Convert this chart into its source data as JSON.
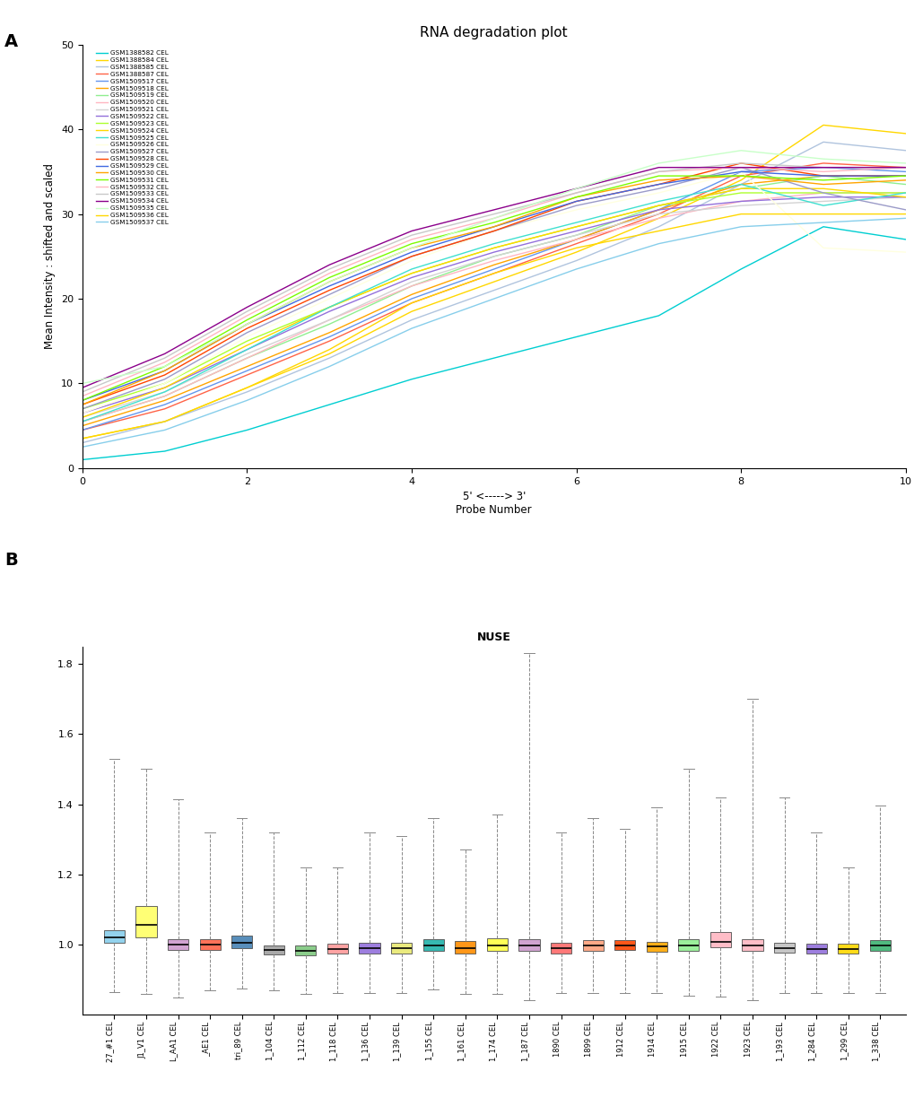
{
  "panel_a": {
    "title": "RNA degradation plot",
    "xlabel": "Probe Number",
    "xlabel2": "5' <-----> 3'",
    "ylabel": "Mean Intensity : shifted and scaled",
    "xlim": [
      0,
      10
    ],
    "ylim": [
      0,
      50
    ],
    "xticks": [
      0,
      2,
      4,
      6,
      8,
      10
    ],
    "yticks": [
      0,
      10,
      20,
      30,
      40,
      50
    ],
    "legend_labels": [
      "GSM1388582 CEL",
      "GSM1388584 CEL",
      "GSM1388585 CEL",
      "GSM1388587 CEL",
      "GSM1509517 CEL",
      "GSM1509518 CEL",
      "GSM1509519 CEL",
      "GSM1509520 CEL",
      "GSM1509521 CEL",
      "GSM1509522 CEL",
      "GSM1509523 CEL",
      "GSM1509524 CEL",
      "GSM1509525 CEL",
      "GSM1509526 CEL",
      "GSM1509527 CEL",
      "GSM1509528 CEL",
      "GSM1509529 CEL",
      "GSM1509530 CEL",
      "GSM1509531 CEL",
      "GSM1509532 CEL",
      "GSM1509533 CEL",
      "GSM1509534 CEL",
      "GSM1509535 CEL",
      "GSM1509536 CEL",
      "GSM1509537 CEL"
    ],
    "line_colors": [
      "#00CED1",
      "#FFD700",
      "#B0C4DE",
      "#FF6347",
      "#6495ED",
      "#FFA500",
      "#90EE90",
      "#FFB6C1",
      "#D3D3D3",
      "#9370DB",
      "#ADFF2F",
      "#FFD700",
      "#40E0D0",
      "#FFFFE0",
      "#9B9BC8",
      "#FF4500",
      "#4169E1",
      "#FFA500",
      "#7CFC00",
      "#FFB6C1",
      "#C8C8C8",
      "#8B008B",
      "#C8FFC8",
      "#FFD700",
      "#87CEEB"
    ],
    "x": [
      0,
      1,
      2,
      3,
      4,
      5,
      6,
      7,
      8,
      9,
      10
    ],
    "lines": [
      [
        1.0,
        2.0,
        4.5,
        7.5,
        10.5,
        13.0,
        15.5,
        18.0,
        23.5,
        28.5,
        27.0
      ],
      [
        3.5,
        5.5,
        9.5,
        13.5,
        18.5,
        22.0,
        25.5,
        29.5,
        34.0,
        40.5,
        39.5
      ],
      [
        3.0,
        5.5,
        9.0,
        13.0,
        17.5,
        21.0,
        24.5,
        28.5,
        33.5,
        38.5,
        37.5
      ],
      [
        4.5,
        7.0,
        11.0,
        15.0,
        19.5,
        23.0,
        26.5,
        30.0,
        34.5,
        36.0,
        35.5
      ],
      [
        4.5,
        7.5,
        11.5,
        15.5,
        20.0,
        23.5,
        27.0,
        30.5,
        35.0,
        35.5,
        35.0
      ],
      [
        5.0,
        8.0,
        12.0,
        16.0,
        20.5,
        24.0,
        27.0,
        30.5,
        33.5,
        34.5,
        34.5
      ],
      [
        5.5,
        8.5,
        13.0,
        17.0,
        21.5,
        25.0,
        27.5,
        31.0,
        33.0,
        34.5,
        33.5
      ],
      [
        5.5,
        8.5,
        13.0,
        17.5,
        21.5,
        24.5,
        27.0,
        29.5,
        31.5,
        32.5,
        32.5
      ],
      [
        6.0,
        9.0,
        13.5,
        17.5,
        22.0,
        25.0,
        27.5,
        30.0,
        31.0,
        31.5,
        32.0
      ],
      [
        6.5,
        9.5,
        14.0,
        18.5,
        22.5,
        25.5,
        28.0,
        30.5,
        31.5,
        32.0,
        32.0
      ],
      [
        7.0,
        10.0,
        15.0,
        19.0,
        23.0,
        26.0,
        28.5,
        31.0,
        32.5,
        32.5,
        32.5
      ],
      [
        6.0,
        9.5,
        14.5,
        19.0,
        23.0,
        26.0,
        28.5,
        31.0,
        33.0,
        33.0,
        32.0
      ],
      [
        5.5,
        9.0,
        14.0,
        19.0,
        23.5,
        26.5,
        29.0,
        31.5,
        33.5,
        31.0,
        32.5
      ],
      [
        6.5,
        10.0,
        15.5,
        20.0,
        24.5,
        28.0,
        30.5,
        32.5,
        35.0,
        26.0,
        25.5
      ],
      [
        7.0,
        10.5,
        16.0,
        20.5,
        25.0,
        28.0,
        31.0,
        33.0,
        35.5,
        32.5,
        30.5
      ],
      [
        7.5,
        11.0,
        16.5,
        21.0,
        25.0,
        28.0,
        31.5,
        33.5,
        36.0,
        34.5,
        34.5
      ],
      [
        8.0,
        11.5,
        17.0,
        21.5,
        25.5,
        28.5,
        31.5,
        33.5,
        35.0,
        34.5,
        34.5
      ],
      [
        7.5,
        11.5,
        17.0,
        22.0,
        26.0,
        28.5,
        32.0,
        34.0,
        34.5,
        33.5,
        34.0
      ],
      [
        8.0,
        12.0,
        17.5,
        22.5,
        26.5,
        29.0,
        32.0,
        34.5,
        34.5,
        34.0,
        34.5
      ],
      [
        8.5,
        12.5,
        18.0,
        23.0,
        27.0,
        29.5,
        32.5,
        35.0,
        35.5,
        35.0,
        35.5
      ],
      [
        9.0,
        13.0,
        18.5,
        23.5,
        27.5,
        30.0,
        32.5,
        35.0,
        36.0,
        35.5,
        35.5
      ],
      [
        9.5,
        13.5,
        19.0,
        24.0,
        28.0,
        30.5,
        33.0,
        35.5,
        35.5,
        35.5,
        35.5
      ],
      [
        10.0,
        12.0,
        17.0,
        22.0,
        26.0,
        29.5,
        33.0,
        36.0,
        37.5,
        36.5,
        36.0
      ],
      [
        3.5,
        5.5,
        9.5,
        14.0,
        19.5,
        23.0,
        26.0,
        28.0,
        30.0,
        30.0,
        30.0
      ],
      [
        2.5,
        4.5,
        8.0,
        12.0,
        16.5,
        20.0,
        23.5,
        26.5,
        28.5,
        29.0,
        29.5
      ]
    ]
  },
  "panel_b": {
    "title": "NUSE",
    "ylabel": "",
    "ylim": [
      0.8,
      1.85
    ],
    "yticks": [
      1.0,
      1.2,
      1.4,
      1.6,
      1.8
    ],
    "sample_labels": [
      "27_#1 CEL",
      "J1_V1 CEL",
      "L_AA1 CEL",
      "_AE1 CEL",
      "tri_89 CEL",
      "1_104 CEL",
      "1_112 CEL",
      "1_118 CEL",
      "1_136 CEL",
      "1_139 CEL",
      "1_155 CEL",
      "1_161 CEL",
      "1_174 CEL",
      "1_187 CEL",
      "1890 CEL",
      "1899 CEL",
      "1912 CEL",
      "1914 CEL",
      "1915 CEL",
      "1922 CEL",
      "1923 CEL",
      "1_193 CEL",
      "1_284 CEL",
      "1_299 CEL",
      "1_338 CEL"
    ],
    "box_colors": [
      "#87CEEB",
      "#FFFF66",
      "#CC99CC",
      "#FF6347",
      "#4682B4",
      "#A0A0A0",
      "#7EC87E",
      "#FF9999",
      "#9370DB",
      "#E8E870",
      "#20B2AA",
      "#FF8C00",
      "#FFFF44",
      "#CC99CC",
      "#FF6B6B",
      "#FFA07A",
      "#FF4500",
      "#FFA500",
      "#90EE90",
      "#FFB6C1",
      "#FFB6C1",
      "#C0C0C0",
      "#9370DB",
      "#FFD700",
      "#3CB371"
    ],
    "box_data": [
      {
        "med": 1.02,
        "q1": 1.005,
        "q3": 1.04,
        "whislo": 0.865,
        "whishi": 1.53
      },
      {
        "med": 1.055,
        "q1": 1.02,
        "q3": 1.11,
        "whislo": 0.86,
        "whishi": 1.5
      },
      {
        "med": 1.0,
        "q1": 0.985,
        "q3": 1.015,
        "whislo": 0.85,
        "whishi": 1.415
      },
      {
        "med": 1.0,
        "q1": 0.985,
        "q3": 1.015,
        "whislo": 0.87,
        "whishi": 1.32
      },
      {
        "med": 1.005,
        "q1": 0.99,
        "q3": 1.025,
        "whislo": 0.875,
        "whishi": 1.36
      },
      {
        "med": 0.985,
        "q1": 0.972,
        "q3": 0.998,
        "whislo": 0.87,
        "whishi": 1.32
      },
      {
        "med": 0.982,
        "q1": 0.97,
        "q3": 0.996,
        "whislo": 0.86,
        "whishi": 1.22
      },
      {
        "med": 0.988,
        "q1": 0.974,
        "q3": 1.002,
        "whislo": 0.862,
        "whishi": 1.22
      },
      {
        "med": 0.99,
        "q1": 0.975,
        "q3": 1.005,
        "whislo": 0.862,
        "whishi": 1.32
      },
      {
        "med": 0.99,
        "q1": 0.975,
        "q3": 1.005,
        "whislo": 0.862,
        "whishi": 1.31
      },
      {
        "med": 0.998,
        "q1": 0.982,
        "q3": 1.015,
        "whislo": 0.872,
        "whishi": 1.36
      },
      {
        "med": 0.99,
        "q1": 0.974,
        "q3": 1.01,
        "whislo": 0.86,
        "whishi": 1.27
      },
      {
        "med": 0.998,
        "q1": 0.982,
        "q3": 1.018,
        "whislo": 0.86,
        "whishi": 1.37
      },
      {
        "med": 0.998,
        "q1": 0.982,
        "q3": 1.015,
        "whislo": 0.84,
        "whishi": 1.83
      },
      {
        "med": 0.99,
        "q1": 0.974,
        "q3": 1.005,
        "whislo": 0.862,
        "whishi": 1.32
      },
      {
        "med": 0.998,
        "q1": 0.982,
        "q3": 1.012,
        "whislo": 0.862,
        "whishi": 1.36
      },
      {
        "med": 0.998,
        "q1": 0.984,
        "q3": 1.012,
        "whislo": 0.862,
        "whishi": 1.33
      },
      {
        "med": 0.994,
        "q1": 0.98,
        "q3": 1.008,
        "whislo": 0.862,
        "whishi": 1.39
      },
      {
        "med": 0.998,
        "q1": 0.982,
        "q3": 1.015,
        "whislo": 0.855,
        "whishi": 1.5
      },
      {
        "med": 1.008,
        "q1": 0.992,
        "q3": 1.035,
        "whislo": 0.852,
        "whishi": 1.42
      },
      {
        "med": 0.998,
        "q1": 0.982,
        "q3": 1.015,
        "whislo": 0.84,
        "whishi": 1.7
      },
      {
        "med": 0.99,
        "q1": 0.978,
        "q3": 1.005,
        "whislo": 0.862,
        "whishi": 1.42
      },
      {
        "med": 0.988,
        "q1": 0.974,
        "q3": 1.002,
        "whislo": 0.862,
        "whishi": 1.32
      },
      {
        "med": 0.988,
        "q1": 0.974,
        "q3": 1.002,
        "whislo": 0.862,
        "whishi": 1.22
      },
      {
        "med": 0.998,
        "q1": 0.982,
        "q3": 1.012,
        "whislo": 0.862,
        "whishi": 1.395
      }
    ]
  }
}
